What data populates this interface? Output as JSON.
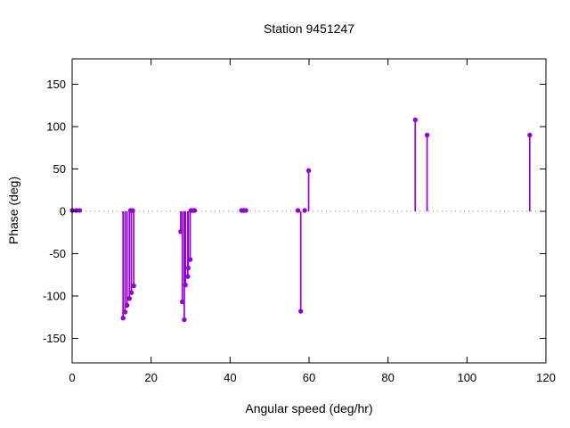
{
  "title": "Station 9451247",
  "axes": {
    "x_label": "Angular speed (deg/hr)",
    "y_label": "Phase (deg)"
  },
  "colors": {
    "series": "#9400d3",
    "frame": "#000000",
    "zero_line": "#8a8a8a",
    "text": "#000000",
    "background": "#ffffff"
  },
  "chart_data": {
    "type": "scatter",
    "style": "impulses-with-points",
    "title": "Station 9451247",
    "xlabel": "Angular speed (deg/hr)",
    "ylabel": "Phase (deg)",
    "xlim": [
      0,
      120
    ],
    "ylim": [
      -179,
      180
    ],
    "x_ticks": [
      0,
      20,
      40,
      60,
      80,
      100,
      120
    ],
    "y_ticks": [
      -150,
      -100,
      -50,
      0,
      50,
      100,
      150
    ],
    "grid": false,
    "zero_line_dotted": true,
    "legend_position": "none",
    "points": [
      [
        0.04,
        1
      ],
      [
        1.0,
        1
      ],
      [
        1.9,
        1
      ],
      [
        12.9,
        -126
      ],
      [
        13.4,
        -119
      ],
      [
        13.9,
        -111
      ],
      [
        14.5,
        -103
      ],
      [
        15.0,
        -96
      ],
      [
        15.6,
        -88
      ],
      [
        14.8,
        1
      ],
      [
        15.3,
        1
      ],
      [
        27.5,
        -24
      ],
      [
        27.9,
        -107
      ],
      [
        28.4,
        -128
      ],
      [
        28.7,
        -87
      ],
      [
        29.3,
        -77
      ],
      [
        29.4,
        -67
      ],
      [
        29.9,
        -57
      ],
      [
        30.1,
        1
      ],
      [
        30.6,
        1
      ],
      [
        31.0,
        1
      ],
      [
        42.9,
        1
      ],
      [
        43.5,
        1
      ],
      [
        44.0,
        1
      ],
      [
        57.2,
        1
      ],
      [
        57.9,
        -118
      ],
      [
        58.9,
        1
      ],
      [
        59.9,
        48
      ],
      [
        86.9,
        108
      ],
      [
        89.9,
        90
      ],
      [
        115.9,
        90
      ]
    ]
  }
}
